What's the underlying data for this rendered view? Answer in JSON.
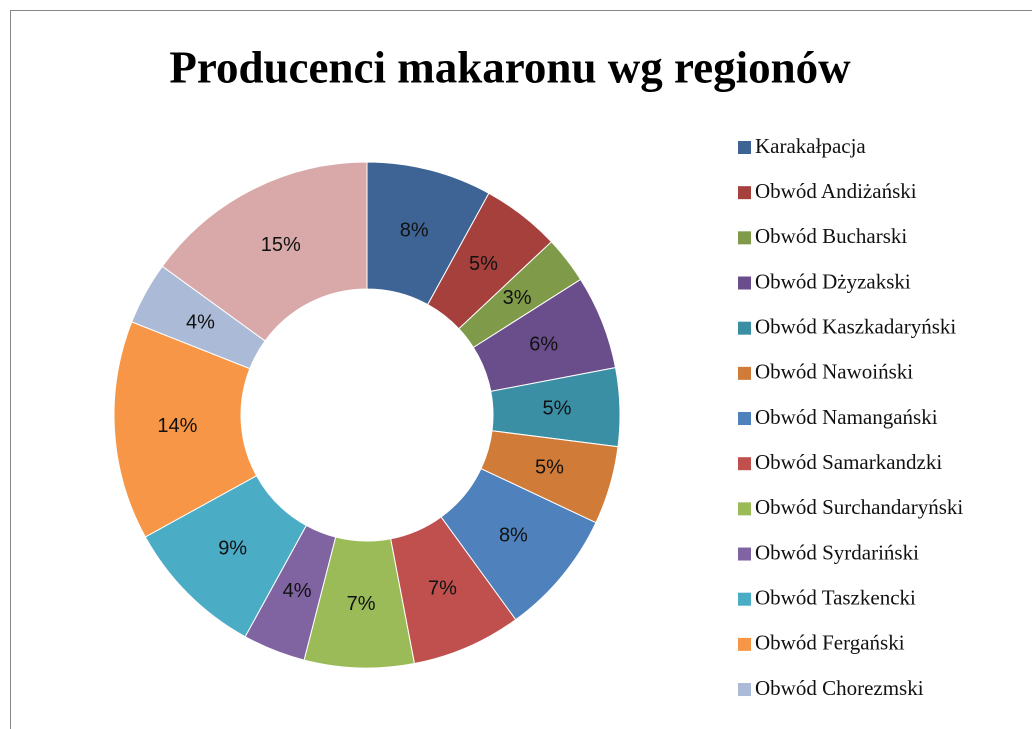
{
  "chart_data": {
    "type": "donut",
    "title": "Producenci makaronu wg regionów",
    "categories": [
      "Karakałpacja",
      "Obwód Andiżański",
      "Obwód Bucharski",
      "Obwód Dżyzakski",
      "Obwód Kaszkadaryński",
      "Obwód Nawoiński",
      "Obwód Namangański",
      "Obwód Samarkandzki",
      "Obwód Surchandaryński",
      "Obwód Syrdariński",
      "Obwód Taszkencki",
      "Obwód Fergański",
      "Obwód Chorezmski",
      null
    ],
    "values": [
      8,
      5,
      3,
      6,
      5,
      5,
      8,
      7,
      7,
      4,
      9,
      14,
      4,
      15
    ],
    "value_labels": [
      "8%",
      "5%",
      "3%",
      "6%",
      "5%",
      "5%",
      "8%",
      "7%",
      "7%",
      "4%",
      "9%",
      "14%",
      "4%",
      "15%"
    ],
    "colors": [
      "#3e6496",
      "#a5403d",
      "#7f9a48",
      "#6a4e8c",
      "#3a8fa5",
      "#d07b37",
      "#4f81bd",
      "#c0504d",
      "#9bbb59",
      "#8064a2",
      "#4bacc6",
      "#f79646",
      "#aabad7",
      "#d9a9a9"
    ],
    "legend": "right"
  }
}
